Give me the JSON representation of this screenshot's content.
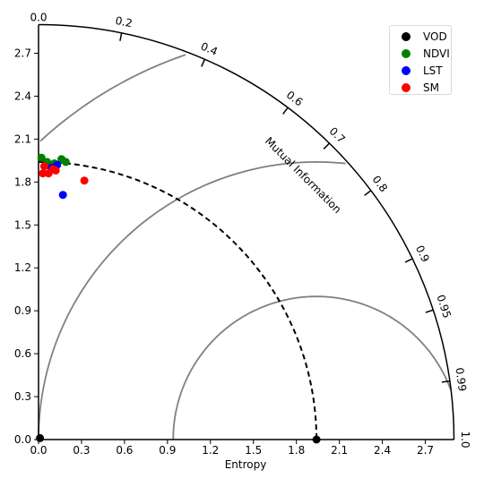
{
  "chart_data": {
    "type": "scatter",
    "title": "",
    "xlabel": "Entropy",
    "arc_label": "Mutual Information",
    "xlim": [
      0,
      2.9
    ],
    "ylim": [
      0,
      2.9
    ],
    "x_ticks": [
      "0.0",
      "0.3",
      "0.6",
      "0.9",
      "1.2",
      "1.5",
      "1.8",
      "2.1",
      "2.4",
      "2.7"
    ],
    "y_ticks": [
      "0.0",
      "0.3",
      "0.6",
      "0.9",
      "1.2",
      "1.5",
      "1.8",
      "2.1",
      "2.4",
      "2.7"
    ],
    "arc_ticks": [
      "0.0",
      "0.2",
      "0.4",
      "0.6",
      "0.7",
      "0.8",
      "0.9",
      "0.95",
      "0.99",
      "1.0"
    ],
    "reference_entropy": 1.94,
    "legend_position": "top-right",
    "series": [
      {
        "name": "VOD",
        "color": "#000000",
        "points": [
          [
            0.01,
            0.01
          ],
          [
            1.94,
            0.0
          ]
        ]
      },
      {
        "name": "NDVI",
        "color": "#008000",
        "points": [
          [
            0.02,
            1.97
          ],
          [
            0.06,
            1.94
          ],
          [
            0.16,
            1.96
          ],
          [
            0.19,
            1.94
          ],
          [
            0.11,
            1.93
          ]
        ]
      },
      {
        "name": "LST",
        "color": "#0000ff",
        "points": [
          [
            0.13,
            1.92
          ],
          [
            0.09,
            1.9
          ],
          [
            0.17,
            1.71
          ]
        ]
      },
      {
        "name": "SM",
        "color": "#ff0000",
        "points": [
          [
            0.03,
            1.86
          ],
          [
            0.04,
            1.91
          ],
          [
            0.07,
            1.86
          ],
          [
            0.1,
            1.89
          ],
          [
            0.12,
            1.88
          ],
          [
            0.32,
            1.81
          ]
        ]
      }
    ]
  }
}
